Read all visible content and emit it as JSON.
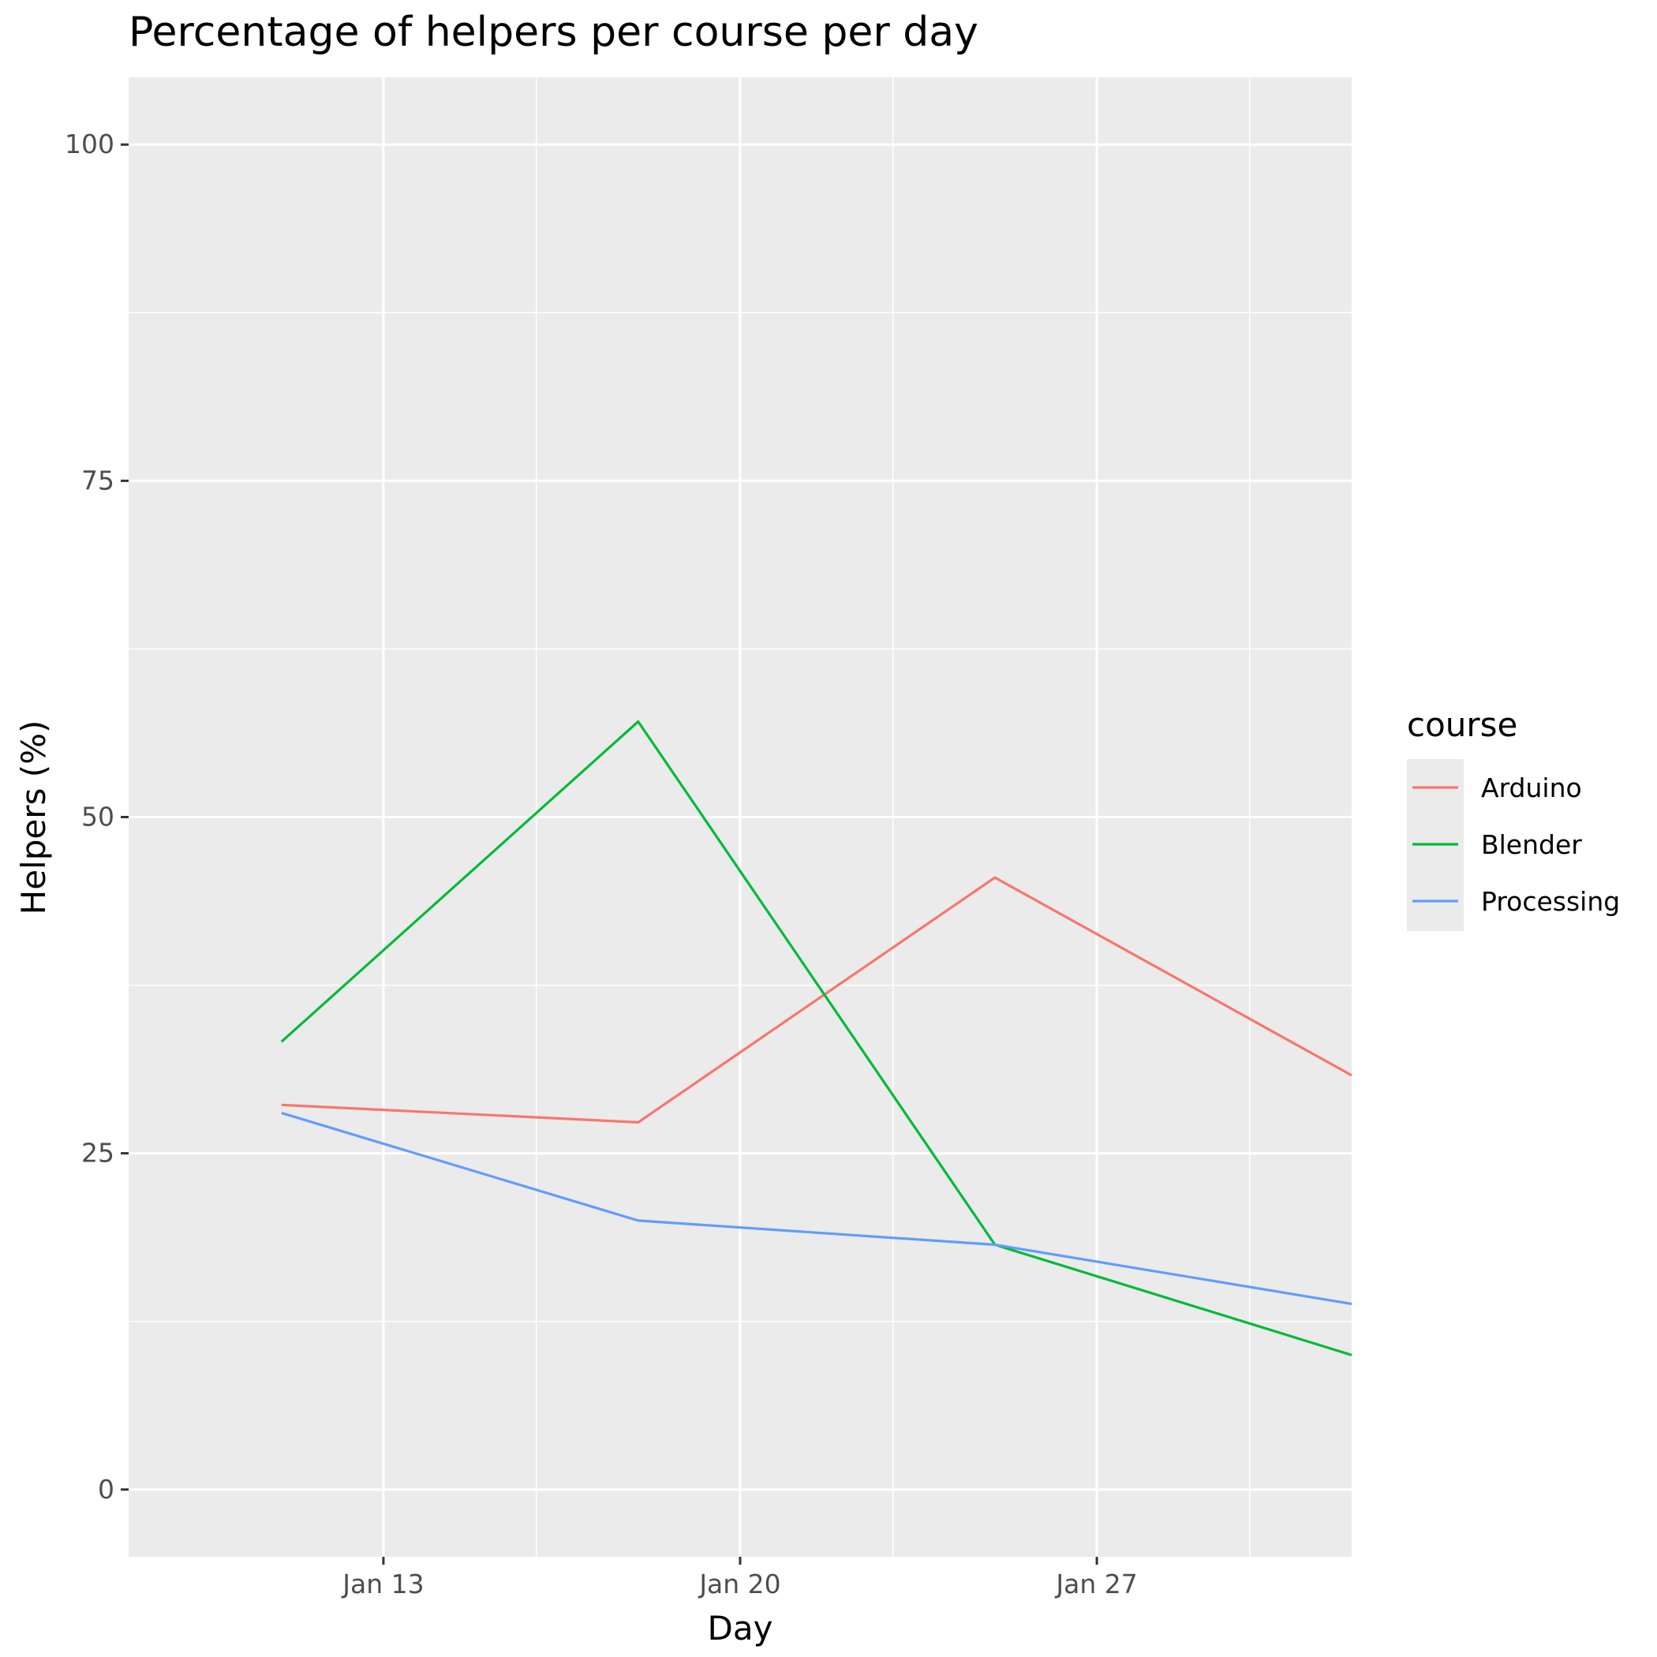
{
  "chart_data": {
    "type": "line",
    "title": "Percentage of helpers per course per day",
    "xlabel": "Day",
    "ylabel": "Helpers (%)",
    "x_type": "date",
    "xlim": [
      "2025-01-08",
      "2025-02-01"
    ],
    "ylim": [
      -5,
      105
    ],
    "x_ticks": [
      {
        "date": "2025-01-13",
        "label": "Jan 13"
      },
      {
        "date": "2025-01-20",
        "label": "Jan 20"
      },
      {
        "date": "2025-01-27",
        "label": "Jan 27"
      }
    ],
    "x_minor_ticks": [
      "2025-01-16",
      "2025-01-23",
      "2025-01-30"
    ],
    "y_ticks": [
      0,
      25,
      50,
      75,
      100
    ],
    "y_minor_ticks": [
      12.5,
      37.5,
      62.5,
      87.5
    ],
    "grid": true,
    "background": "#ebebeb",
    "legend": {
      "title": "course",
      "position": "right"
    },
    "x": [
      "2025-01-11",
      "2025-01-18",
      "2025-01-25",
      "2025-02-01"
    ],
    "series": [
      {
        "name": "Arduino",
        "color": "#f8766d",
        "values": [
          28.6,
          27.3,
          45.5,
          30.8
        ]
      },
      {
        "name": "Blender",
        "color": "#00ba38",
        "values": [
          33.3,
          57.1,
          18.2,
          10.0
        ]
      },
      {
        "name": "Processing",
        "color": "#619cff",
        "values": [
          28.0,
          20.0,
          18.2,
          13.8
        ]
      }
    ]
  }
}
